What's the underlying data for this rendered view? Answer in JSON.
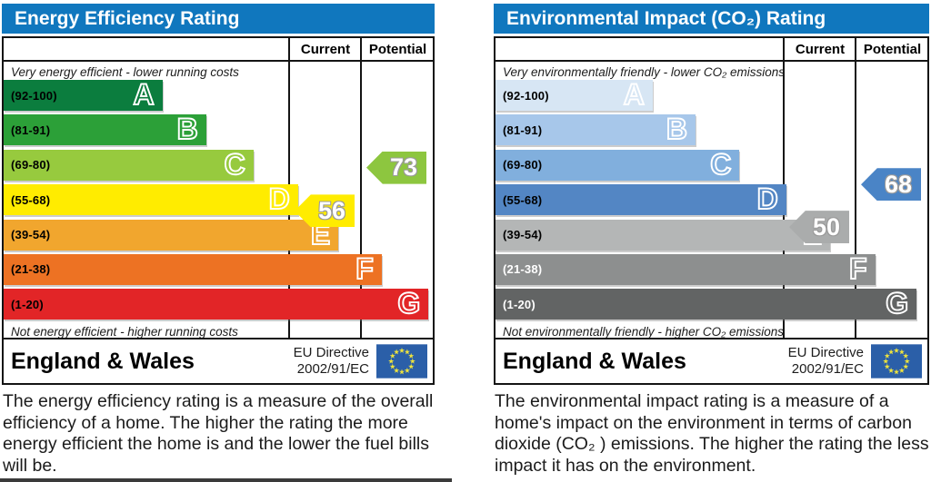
{
  "colors": {
    "header_bar": "#1077be",
    "table_border": "#141414",
    "eu_flag_blue": "#2b5fa8",
    "eu_flag_stars": "#f0e43c"
  },
  "chart_data": [
    {
      "type": "bar",
      "subtype": "epc-rating-bands",
      "title": "Energy Efficiency Rating",
      "columns": [
        "Current",
        "Potential"
      ],
      "top_note": "Very energy efficient - lower running costs",
      "bottom_note": "Not energy efficient - higher running costs",
      "bands": [
        {
          "letter": "A",
          "range": "(92-100)",
          "min": 92,
          "max": 100,
          "width_pct": 37.0,
          "color": "#0b7d3e",
          "range_color": "#000000"
        },
        {
          "letter": "B",
          "range": "(81-91)",
          "min": 81,
          "max": 91,
          "width_pct": 47.2,
          "color": "#2ca038",
          "range_color": "#000000"
        },
        {
          "letter": "C",
          "range": "(69-80)",
          "min": 69,
          "max": 80,
          "width_pct": 58.2,
          "color": "#97ca3e",
          "range_color": "#000000"
        },
        {
          "letter": "D",
          "range": "(55-68)",
          "min": 55,
          "max": 68,
          "width_pct": 68.6,
          "color": "#ffec00",
          "range_color": "#000000"
        },
        {
          "letter": "E",
          "range": "(39-54)",
          "min": 39,
          "max": 54,
          "width_pct": 78.0,
          "color": "#f1a62e",
          "range_color": "#000000"
        },
        {
          "letter": "F",
          "range": "(21-38)",
          "min": 21,
          "max": 38,
          "width_pct": 88.1,
          "color": "#ed7223",
          "range_color": "#000000"
        },
        {
          "letter": "G",
          "range": "(1-20)",
          "min": 1,
          "max": 20,
          "width_pct": 99.0,
          "color": "#e22527",
          "range_color": "#000000"
        }
      ],
      "current": {
        "value": 56,
        "band": "D",
        "color": "#ffec00"
      },
      "potential": {
        "value": 73,
        "band": "C",
        "color": "#8dc63f"
      },
      "region": "England & Wales",
      "directive_line1": "EU Directive",
      "directive_line2": "2002/91/EC",
      "description": "The energy efficiency rating is a measure of the overall efficiency of a home. The higher the rating the more energy efficient the home is and the lower the fuel bills will be."
    },
    {
      "type": "bar",
      "subtype": "epc-rating-bands",
      "title": "Environmental Impact (CO₂) Rating",
      "columns": [
        "Current",
        "Potential"
      ],
      "top_note": "Very environmentally friendly - lower CO₂ emissions",
      "bottom_note": "Not environmentally friendly - higher CO₂ emissions",
      "bands": [
        {
          "letter": "A",
          "range": "(92-100)",
          "min": 92,
          "max": 100,
          "width_pct": 36.4,
          "color": "#d7e6f4",
          "range_color": "#000000"
        },
        {
          "letter": "B",
          "range": "(81-91)",
          "min": 81,
          "max": 91,
          "width_pct": 46.3,
          "color": "#a7c7ea",
          "range_color": "#000000"
        },
        {
          "letter": "C",
          "range": "(69-80)",
          "min": 69,
          "max": 80,
          "width_pct": 56.5,
          "color": "#81afdd",
          "range_color": "#000000"
        },
        {
          "letter": "D",
          "range": "(55-68)",
          "min": 55,
          "max": 68,
          "width_pct": 67.3,
          "color": "#5386c4",
          "range_color": "#000000"
        },
        {
          "letter": "E",
          "range": "(39-54)",
          "min": 39,
          "max": 54,
          "width_pct": 77.5,
          "color": "#b4b6b6",
          "range_color": "#000000"
        },
        {
          "letter": "F",
          "range": "(21-38)",
          "min": 21,
          "max": 38,
          "width_pct": 87.9,
          "color": "#8d8f8f",
          "range_color": "#ffffff"
        },
        {
          "letter": "G",
          "range": "(1-20)",
          "min": 1,
          "max": 20,
          "width_pct": 97.5,
          "color": "#626464",
          "range_color": "#ffffff"
        }
      ],
      "current": {
        "value": 50,
        "band": "E",
        "color": "#aaacac"
      },
      "potential": {
        "value": 68,
        "band": "D",
        "color": "#4a84c6"
      },
      "region": "England & Wales",
      "directive_line1": "EU Directive",
      "directive_line2": "2002/91/EC",
      "description": "The environmental impact rating is a measure of a home's impact on the environment in terms of carbon dioxide (CO₂ ) emissions. The higher the rating the less impact it has on the environment."
    }
  ]
}
